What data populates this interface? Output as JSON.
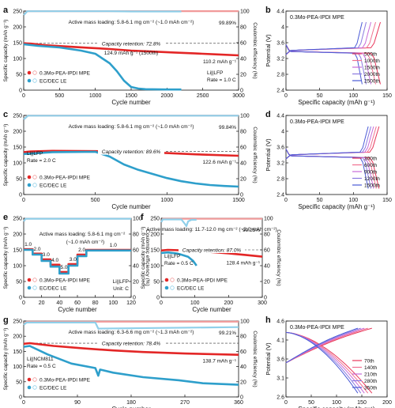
{
  "figure": {
    "colors": {
      "mpe": "#e32626",
      "mpe_ce": "#f19a9a",
      "le": "#2e9fcb",
      "le_ce": "#8fd0ea",
      "axis": "#111111"
    }
  },
  "chart_data": [
    {
      "id": "a",
      "type": "line",
      "panel_label": "a",
      "xlabel": "Cycle number",
      "ylabel": "Specific capacity (mAh g⁻¹)",
      "y2label": "Coulombic efficiency (%)",
      "xlim": [
        0,
        3000
      ],
      "ylim": [
        0,
        250
      ],
      "y2lim": [
        0,
        100
      ],
      "xticks": [
        0,
        500,
        1000,
        1500,
        2000,
        2500,
        3000
      ],
      "yticks": [
        0,
        50,
        100,
        150,
        200,
        250
      ],
      "y2ticks": [
        0,
        20,
        40,
        60,
        80,
        100
      ],
      "series": [
        {
          "name": "0.3Mo-PEA-IPDI MPE",
          "role": "cap",
          "color": "#e32626",
          "x": [
            0,
            100,
            300,
            600,
            900,
            1200,
            1500,
            1800,
            2100,
            2400,
            2700,
            3000
          ],
          "values": [
            148,
            147,
            142,
            138,
            134,
            130,
            125,
            122,
            119,
            116,
            113,
            110
          ]
        },
        {
          "name": "",
          "role": "ce",
          "color": "#f19a9a",
          "x": [
            0,
            50,
            3000
          ],
          "values": [
            95,
            99.9,
            99.9
          ]
        },
        {
          "name": "EC/DEC LE",
          "role": "cap",
          "color": "#2e9fcb",
          "x": [
            0,
            200,
            500,
            800,
            1000,
            1100,
            1200,
            1300,
            1400,
            1500,
            1600,
            1700,
            2000,
            2200
          ],
          "values": [
            145,
            140,
            135,
            125,
            115,
            100,
            85,
            60,
            30,
            10,
            5,
            3,
            2,
            2
          ]
        },
        {
          "name": "",
          "role": "ce",
          "color": "#8fd0ea",
          "x": [
            0,
            50,
            1200,
            1500,
            2000,
            2200
          ],
          "values": [
            95,
            99.8,
            99.8,
            99.5,
            99.5,
            99.5
          ]
        }
      ],
      "ret_line": 148,
      "annotations": {
        "loading": "Active mass loading: 5.8-6.1 mg cm⁻² (~1.0 mAh cm⁻²)",
        "ce": "99.89%",
        "retention": "Capacity retention: 72.8%",
        "point": "124.9 mAh g⁻¹ (1500th)",
        "end": "110.2 mAh g⁻¹",
        "cell": "Li||LFP",
        "rate": "Rate = 1.0 C"
      }
    },
    {
      "id": "b",
      "type": "line",
      "panel_label": "b",
      "title": "0.3Mo-PEA-IPDI MPE",
      "xlabel": "Specific capacity (mAh g⁻¹)",
      "ylabel": "Potential (V)",
      "xlim": [
        0,
        150
      ],
      "ylim": [
        2.4,
        4.4
      ],
      "xticks": [
        0,
        50,
        100,
        150
      ],
      "yticks": [
        2.4,
        2.8,
        3.2,
        3.6,
        4.0,
        4.4
      ],
      "legend": [
        "500th",
        "1000th",
        "1500th",
        "2000th",
        "2500th"
      ],
      "caps": [
        140,
        133,
        126,
        119,
        113
      ],
      "colors": [
        "#e8375a",
        "#f07090",
        "#c86ad8",
        "#8a78e0",
        "#4a5ad6"
      ]
    },
    {
      "id": "c",
      "type": "line",
      "panel_label": "c",
      "xlabel": "Cycle number",
      "ylabel": "Specific capacity (mAh g⁻¹)",
      "y2label": "Coulombic efficiency (%)",
      "xlim": [
        0,
        1500
      ],
      "ylim": [
        0,
        250
      ],
      "y2lim": [
        0,
        100
      ],
      "xticks": [
        0,
        500,
        1000,
        1500
      ],
      "yticks": [
        0,
        50,
        100,
        150,
        200,
        250
      ],
      "y2ticks": [
        0,
        20,
        40,
        60,
        80,
        100
      ],
      "series": [
        {
          "name": "0.3Mo-PEA-IPDI MPE",
          "role": "cap",
          "color": "#e32626",
          "x": [
            0,
            50,
            200,
            500,
            800,
            1000,
            1200,
            1500
          ],
          "values": [
            134,
            136,
            138,
            137,
            134,
            131,
            127,
            122.6
          ]
        },
        {
          "name": "",
          "role": "ce",
          "color": "#f19a9a",
          "x": [
            0,
            30,
            1500
          ],
          "values": [
            95,
            99.8,
            99.8
          ]
        },
        {
          "name": "EC/DEC LE",
          "role": "cap",
          "color": "#2e9fcb",
          "x": [
            0,
            200,
            500,
            600,
            700,
            800,
            900,
            1000,
            1100,
            1200,
            1300,
            1400,
            1500
          ],
          "values": [
            128,
            134,
            135,
            120,
            95,
            78,
            65,
            52,
            42,
            35,
            30,
            27,
            25
          ]
        },
        {
          "name": "",
          "role": "ce",
          "color": "#8fd0ea",
          "x": [
            0,
            30,
            1500
          ],
          "values": [
            95,
            99.7,
            99.7
          ]
        }
      ],
      "ret_line": 136,
      "annotations": {
        "loading": "Active mass loading: 5.8-6.1 mg cm⁻² (~1.0 mAh cm⁻²)",
        "ce": "99.84%",
        "retention": "Capacity retention: 89.6%",
        "end": "122.6 mAh g⁻¹",
        "cell": "Li||LFP",
        "rate": "Rate = 2.0 C"
      }
    },
    {
      "id": "d",
      "type": "line",
      "panel_label": "d",
      "title": "0.3Mo-PEA-IPDI MPE",
      "xlabel": "Specific capacity (mAh g⁻¹)",
      "ylabel": "Potential (V)",
      "xlim": [
        0,
        150
      ],
      "ylim": [
        2.4,
        4.4
      ],
      "xticks": [
        0,
        50,
        100,
        150
      ],
      "yticks": [
        2.4,
        2.8,
        3.2,
        3.6,
        4.0,
        4.4
      ],
      "legend": [
        "300th",
        "600th",
        "900th",
        "1200th",
        "1500th"
      ],
      "caps": [
        138,
        134,
        130,
        126,
        122
      ],
      "colors": [
        "#e8375a",
        "#f07090",
        "#c86ad8",
        "#8a78e0",
        "#4a5ad6"
      ]
    },
    {
      "id": "e",
      "type": "line",
      "panel_label": "e",
      "xlabel": "Cycle number",
      "ylabel": "Specific capacity (mAh g⁻¹)",
      "y2label": "Coulombic efficiency (%)",
      "xlim": [
        0,
        120
      ],
      "ylim": [
        0,
        250
      ],
      "y2lim": [
        0,
        100
      ],
      "xticks": [
        0,
        20,
        40,
        60,
        80,
        100,
        120
      ],
      "yticks": [
        0,
        50,
        100,
        150,
        200,
        250
      ],
      "y2ticks": [
        0,
        20,
        40,
        60,
        80,
        100
      ],
      "series": [
        {
          "name": "0.3Mo-PEA-IPDI MPE",
          "role": "cap",
          "color": "#e32626",
          "x": [
            0,
            10,
            10,
            20,
            20,
            30,
            30,
            40,
            40,
            50,
            50,
            60,
            60,
            70,
            70,
            120
          ],
          "values": [
            152,
            152,
            138,
            138,
            120,
            120,
            103,
            103,
            80,
            80,
            105,
            105,
            135,
            135,
            150,
            150
          ]
        },
        {
          "name": "",
          "role": "ce",
          "color": "#f19a9a",
          "x": [
            0,
            2,
            120
          ],
          "values": [
            96,
            99.5,
            99.5
          ]
        },
        {
          "name": "EC/DEC LE",
          "role": "cap",
          "color": "#2e9fcb",
          "x": [
            0,
            10,
            10,
            20,
            20,
            30,
            30,
            40,
            40,
            50,
            50,
            60,
            60,
            70,
            70,
            120
          ],
          "values": [
            150,
            150,
            135,
            135,
            115,
            115,
            97,
            97,
            75,
            75,
            100,
            100,
            130,
            130,
            148,
            148
          ]
        },
        {
          "name": "",
          "role": "ce",
          "color": "#8fd0ea",
          "x": [
            0,
            2,
            120
          ],
          "values": [
            96,
            99.4,
            99.4
          ]
        }
      ],
      "rate_labels": [
        {
          "text": "1.0",
          "x": 5,
          "y": 162
        },
        {
          "text": "2.0",
          "x": 15,
          "y": 148
        },
        {
          "text": "3.0",
          "x": 25,
          "y": 130
        },
        {
          "text": "4.0",
          "x": 35,
          "y": 113
        },
        {
          "text": "5.0",
          "x": 45,
          "y": 90
        },
        {
          "text": "3.0",
          "x": 55,
          "y": 115
        },
        {
          "text": "2.0",
          "x": 65,
          "y": 145
        },
        {
          "text": "1.0",
          "x": 100,
          "y": 160
        }
      ],
      "annotations": {
        "loading": "Active mass loading: 5.8-6.1 mg cm⁻²",
        "loading2": "(~1.0 mAh cm⁻²)",
        "cell": "Li||LFP",
        "unit": "Unit: C"
      }
    },
    {
      "id": "f",
      "type": "line",
      "panel_label": "f",
      "xlabel": "Cycle number",
      "ylabel": "Specific capacity (mAh g⁻¹)",
      "y2label": "Coulombic efficiency (%)",
      "xlim": [
        0,
        300
      ],
      "ylim": [
        0,
        250
      ],
      "y2lim": [
        0,
        100
      ],
      "xticks": [
        0,
        100,
        200,
        300
      ],
      "yticks": [
        0,
        50,
        100,
        150,
        200,
        250
      ],
      "y2ticks": [
        0,
        20,
        40,
        60,
        80,
        100
      ],
      "series": [
        {
          "name": "0.3Mo-PEA-IPDI MPE",
          "role": "cap",
          "color": "#e32626",
          "x": [
            0,
            20,
            100,
            150,
            200,
            250,
            300
          ],
          "values": [
            148,
            150,
            147,
            143,
            139,
            134,
            128.4
          ]
        },
        {
          "name": "",
          "role": "ce",
          "color": "#f19a9a",
          "x": [
            0,
            5,
            300
          ],
          "values": [
            95,
            99.3,
            99.3
          ]
        },
        {
          "name": "EC/DEC LE",
          "role": "cap",
          "color": "#2e9fcb",
          "x": [
            0,
            20,
            50,
            80,
            95,
            105
          ],
          "values": [
            140,
            142,
            138,
            128,
            115,
            100
          ]
        },
        {
          "name": "",
          "role": "ce",
          "color": "#8fd0ea",
          "x": [
            0,
            5,
            60,
            70,
            75,
            80,
            90,
            105
          ],
          "values": [
            95,
            98.5,
            98.5,
            93,
            90,
            96,
            98,
            98
          ]
        }
      ],
      "ret_line": 150,
      "annotations": {
        "loading": "Active mass loading: 11.7-12.0 mg cm⁻² (~2.0 mAh cm⁻²)",
        "ce": "99.25%",
        "retention": "Capacity retention: 87.0%",
        "end": "128.4 mAh g⁻¹",
        "cell": "Li||LFP",
        "rate": "Rate = 0.5 C"
      }
    },
    {
      "id": "g",
      "type": "line",
      "panel_label": "g",
      "xlabel": "Cycle number",
      "ylabel": "Specific capacity (mAh g⁻¹)",
      "y2label": "Coulombic efficiency (%)",
      "xlim": [
        0,
        360
      ],
      "ylim": [
        0,
        250
      ],
      "y2lim": [
        0,
        100
      ],
      "xticks": [
        0,
        90,
        180,
        270,
        360
      ],
      "yticks": [
        0,
        50,
        100,
        150,
        200,
        250
      ],
      "y2ticks": [
        0,
        20,
        40,
        60,
        80,
        100
      ],
      "series": [
        {
          "name": "0.3Mo-PEA-IPDI MPE",
          "role": "cap",
          "color": "#e32626",
          "x": [
            0,
            10,
            50,
            100,
            150,
            200,
            270,
            360
          ],
          "values": [
            175,
            177,
            168,
            160,
            153,
            148,
            143,
            138.7
          ]
        },
        {
          "name": "",
          "role": "ce",
          "color": "#f19a9a",
          "x": [
            0,
            5,
            360
          ],
          "values": [
            95,
            99.2,
            99.2
          ]
        },
        {
          "name": "EC/DEC LE",
          "role": "cap",
          "color": "#2e9fcb",
          "x": [
            0,
            10,
            40,
            80,
            120,
            125,
            128,
            150,
            200,
            260,
            300,
            360
          ],
          "values": [
            165,
            168,
            140,
            110,
            95,
            70,
            90,
            80,
            65,
            55,
            45,
            40
          ]
        },
        {
          "name": "",
          "role": "ce",
          "color": "#8fd0ea",
          "x": [
            0,
            5,
            120,
            125,
            360
          ],
          "values": [
            95,
            98,
            98,
            90,
            92
          ]
        }
      ],
      "ret_line": 177,
      "annotations": {
        "loading": "Active mass loading: 6.3-6.6 mg cm⁻² (~1.3 mAh cm⁻²)",
        "ce": "99.21%",
        "retention": "Capacity retention: 78.4%",
        "end": "138.7 mAh g⁻¹",
        "cell": "Li||NCM811",
        "rate": "Rate = 0.5 C"
      }
    },
    {
      "id": "h",
      "type": "line",
      "panel_label": "h",
      "title": "0.3Mo-PEA-IPDI MPE",
      "xlabel": "Specific capacity (mAh g⁻¹)",
      "ylabel": "Potential (V)",
      "xlim": [
        0,
        200
      ],
      "ylim": [
        2.6,
        4.6
      ],
      "xticks": [
        0,
        50,
        100,
        150,
        200
      ],
      "yticks": [
        2.6,
        3.1,
        3.6,
        4.1,
        4.6
      ],
      "legend": [
        "70th",
        "140th",
        "210th",
        "280th",
        "350th"
      ],
      "caps": [
        170,
        162,
        155,
        148,
        142
      ],
      "colors": [
        "#e8375a",
        "#f07090",
        "#c86ad8",
        "#8a78e0",
        "#4a5ad6"
      ]
    }
  ]
}
